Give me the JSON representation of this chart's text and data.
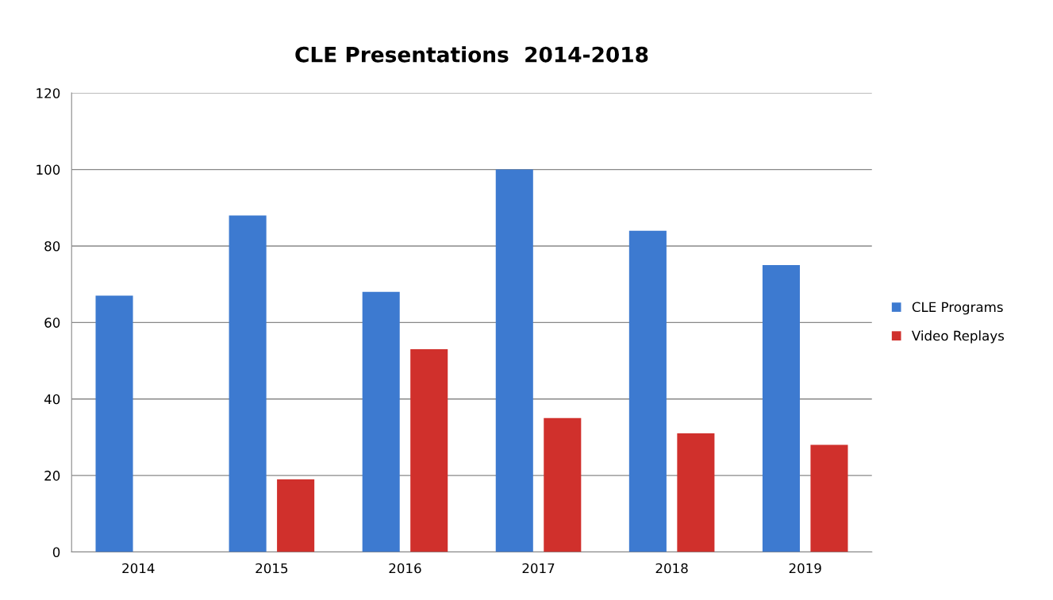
{
  "chart_data": {
    "type": "bar",
    "title": "CLE Presentations  2014-2018",
    "categories": [
      "2014",
      "2015",
      "2016",
      "2017",
      "2018",
      "2019"
    ],
    "series": [
      {
        "name": "CLE Programs",
        "color": "#3d7ad0",
        "values": [
          67,
          88,
          68,
          100,
          84,
          75
        ]
      },
      {
        "name": "Video Replays",
        "color": "#d0302c",
        "values": [
          null,
          19,
          53,
          35,
          31,
          28
        ]
      }
    ],
    "ylim": [
      0,
      120
    ],
    "yticks": [
      0,
      20,
      40,
      60,
      80,
      100,
      120
    ],
    "grid": "y",
    "legend": "right"
  }
}
